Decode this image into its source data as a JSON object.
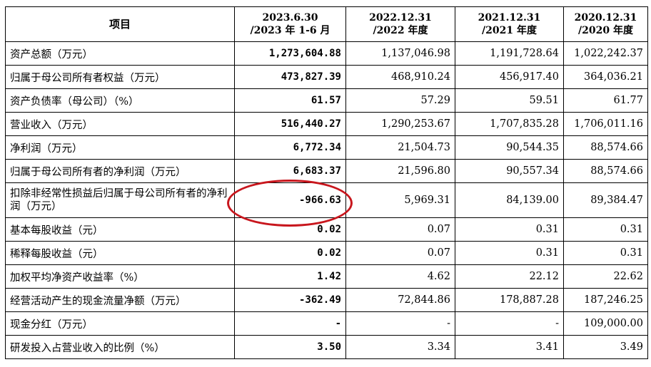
{
  "table": {
    "headers": [
      {
        "label": "项目",
        "lines": [
          "项目"
        ]
      },
      {
        "lines": [
          "2023.6.30",
          "/2023 年 1-6 月"
        ]
      },
      {
        "lines": [
          "2022.12.31",
          "/2022 年度"
        ]
      },
      {
        "lines": [
          "2021.12.31",
          "/2021 年度"
        ]
      },
      {
        "lines": [
          "2020.12.31",
          "/2020 年度"
        ]
      }
    ],
    "rows": [
      {
        "label": "资产总额（万元）",
        "v2023h1": "1,273,604.88",
        "v2022": "1,137,046.98",
        "v2021": "1,191,728.64",
        "v2020": "1,022,242.37"
      },
      {
        "label": "归属于母公司所有者权益（万元）",
        "v2023h1": "473,827.39",
        "v2022": "468,910.24",
        "v2021": "456,917.40",
        "v2020": "364,036.21"
      },
      {
        "label": "资产负债率（母公司）（%）",
        "v2023h1": "61.57",
        "v2022": "57.29",
        "v2021": "59.51",
        "v2020": "61.77"
      },
      {
        "label": "营业收入（万元）",
        "v2023h1": "516,440.27",
        "v2022": "1,290,253.67",
        "v2021": "1,707,835.28",
        "v2020": "1,706,011.16"
      },
      {
        "label": "净利润（万元）",
        "v2023h1": "6,772.34",
        "v2022": "21,504.73",
        "v2021": "90,544.35",
        "v2020": "88,574.66"
      },
      {
        "label": "归属于母公司所有者的净利润（万元）",
        "v2023h1": "6,683.37",
        "v2022": "21,596.80",
        "v2021": "90,557.34",
        "v2020": "88,574.66"
      },
      {
        "label": "扣除非经常性损益后归属于母公司所有者的净利润（万元）",
        "v2023h1": "-966.63",
        "v2022": "5,969.31",
        "v2021": "84,139.00",
        "v2020": "89,384.47"
      },
      {
        "label": "基本每股收益（元）",
        "v2023h1": "0.02",
        "v2022": "0.07",
        "v2021": "0.31",
        "v2020": "0.31"
      },
      {
        "label": "稀释每股收益（元）",
        "v2023h1": "0.02",
        "v2022": "0.07",
        "v2021": "0.31",
        "v2020": "0.31"
      },
      {
        "label": "加权平均净资产收益率（%）",
        "v2023h1": "1.42",
        "v2022": "4.62",
        "v2021": "22.12",
        "v2020": "22.62"
      },
      {
        "label": "经营活动产生的现金流量净额（万元）",
        "v2023h1": "-362.49",
        "v2022": "72,844.86",
        "v2021": "178,887.28",
        "v2020": "187,246.25"
      },
      {
        "label": "现金分红（万元）",
        "v2023h1": "-",
        "v2022": "-",
        "v2021": "-",
        "v2020": "109,000.00"
      },
      {
        "label": "研发投入占营业收入的比例（%）",
        "v2023h1": "3.50",
        "v2022": "3.34",
        "v2021": "3.41",
        "v2020": "3.49"
      }
    ]
  },
  "highlight": {
    "color": "#c8161d"
  }
}
